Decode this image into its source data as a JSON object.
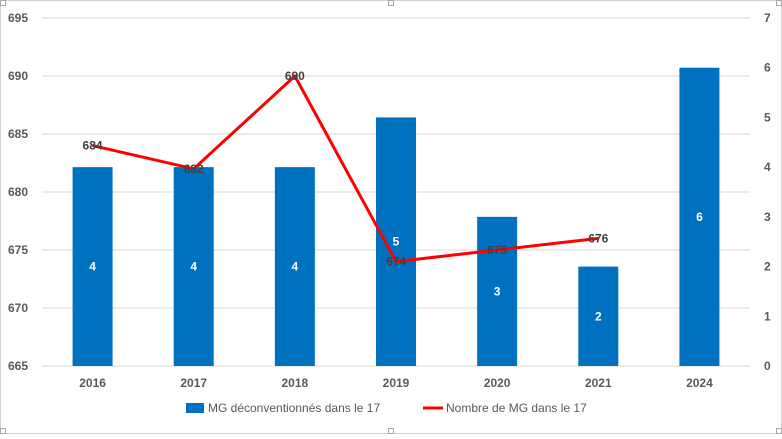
{
  "chart_data": {
    "type": "bar",
    "categories": [
      "2016",
      "2017",
      "2018",
      "2019",
      "2020",
      "2021",
      "2024"
    ],
    "series": [
      {
        "name": "MG déconventionnés dans le 17",
        "type": "bar",
        "axis": "secondary",
        "values": [
          4,
          4,
          4,
          5,
          3,
          2,
          6
        ],
        "labels": [
          "4",
          "4",
          "4",
          "5",
          "3",
          "2",
          "6"
        ]
      },
      {
        "name": "Nombre de MG dans le 17",
        "type": "line",
        "axis": "primary",
        "values": [
          684,
          682,
          690,
          674,
          675,
          676,
          null
        ],
        "labels": [
          "684",
          "682",
          "690",
          "674",
          "675",
          "676",
          ""
        ]
      }
    ],
    "y_primary": {
      "min": 665,
      "max": 695,
      "step": 5,
      "ticks": [
        "665",
        "670",
        "675",
        "680",
        "685",
        "690",
        "695"
      ]
    },
    "y_secondary": {
      "min": 0,
      "max": 7,
      "step": 1,
      "ticks": [
        "0",
        "1",
        "2",
        "3",
        "4",
        "5",
        "6",
        "7"
      ]
    },
    "grid": true,
    "legend": "bottom",
    "colors": {
      "bar": "#0070C0",
      "line": "#FF0000",
      "grid": "#D9D9D9",
      "axis_text": "#595959",
      "bar_label": "#ffffff",
      "line_label": "#404040"
    }
  }
}
